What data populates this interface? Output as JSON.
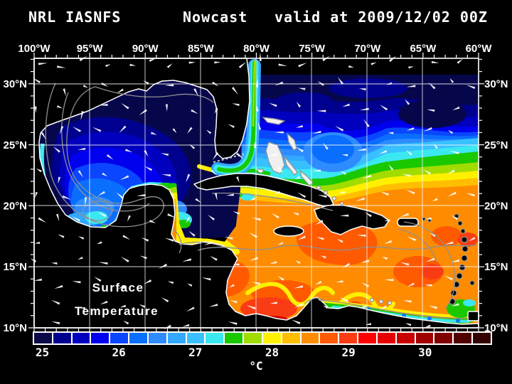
{
  "title": {
    "product": "NRL IASNFS",
    "mode": "Nowcast",
    "valid": "valid at 2009/12/02 00Z"
  },
  "map": {
    "lon_labels": [
      "100°W",
      "95°W",
      "90°W",
      "85°W",
      "80°W",
      "75°W",
      "70°W",
      "65°W",
      "60°W"
    ],
    "lat_labels_left": [
      "30°N",
      "25°N",
      "20°N",
      "15°N",
      "10°N"
    ],
    "lat_labels_right": [
      "30°N",
      "25°N",
      "20°N",
      "15°N",
      "10°N"
    ],
    "overlay": {
      "line1": "Surface",
      "line2": "Temperature"
    },
    "colors": {
      "background": "#000000",
      "land": "#000000",
      "coastline": "#ffffff",
      "graticule": "#ffffff",
      "contour_lines": "#8f8f8f",
      "current_vectors": "#ffffff"
    }
  },
  "colorbar": {
    "unit": "°C",
    "tick_labels": [
      "25",
      "26",
      "27",
      "28",
      "29",
      "30"
    ],
    "tick_cell_index": [
      0,
      4,
      8,
      12,
      16,
      20
    ],
    "cell_colors": [
      "#0A0A48",
      "#00008F",
      "#0000BE",
      "#0000EE",
      "#0A46FF",
      "#0A6EFF",
      "#2E8CFF",
      "#32A8FF",
      "#38C0FF",
      "#3CE8F0",
      "#1AC800",
      "#A0DC00",
      "#FFF000",
      "#FFBE00",
      "#FF8C00",
      "#FF5A00",
      "#FA3C14",
      "#FF0000",
      "#E60000",
      "#C80000",
      "#A00000",
      "#800000",
      "#500000",
      "#320000"
    ]
  },
  "chart_data": {
    "type": "heatmap",
    "title": "NRL IASNFS Nowcast valid at 2009/12/02 00Z",
    "variable": "Surface Temperature",
    "unit": "°C",
    "x_axis_ticks_lon": [
      "100°W",
      "95°W",
      "90°W",
      "85°W",
      "80°W",
      "75°W",
      "70°W",
      "65°W",
      "60°W"
    ],
    "y_axis_ticks_lat": [
      "30°N",
      "25°N",
      "20°N",
      "15°N",
      "10°N"
    ],
    "grid_interval_deg": 5,
    "colorbar_ticks_c": [
      25,
      26,
      27,
      28,
      29,
      30
    ],
    "regions_estimated_c": [
      {
        "region": "Northern Gulf of Mexico",
        "sst": "24-25"
      },
      {
        "region": "Central and southern Gulf of Mexico",
        "sst": "25-26.5"
      },
      {
        "region": "Northwest Atlantic band (28-31°N)",
        "sst": "24-25.5"
      },
      {
        "region": "Central Atlantic band (24-27°N)",
        "sst": "26-27.5"
      },
      {
        "region": "Gulf Stream ribbon off east Florida",
        "sst": "27-28"
      },
      {
        "region": "Northwest Caribbean / Yucatan Basin",
        "sst": "28-28.5"
      },
      {
        "region": "Central and eastern Caribbean",
        "sst": "28.5-29.5"
      },
      {
        "region": "Colombia Basin warm patches",
        "sst": "29.5-30"
      },
      {
        "region": "Venezuela coastal upwelling",
        "sst": "26-28"
      }
    ],
    "overlays": [
      "surface current vectors",
      "gray contour lines",
      "5 degree lat/lon graticule"
    ]
  }
}
